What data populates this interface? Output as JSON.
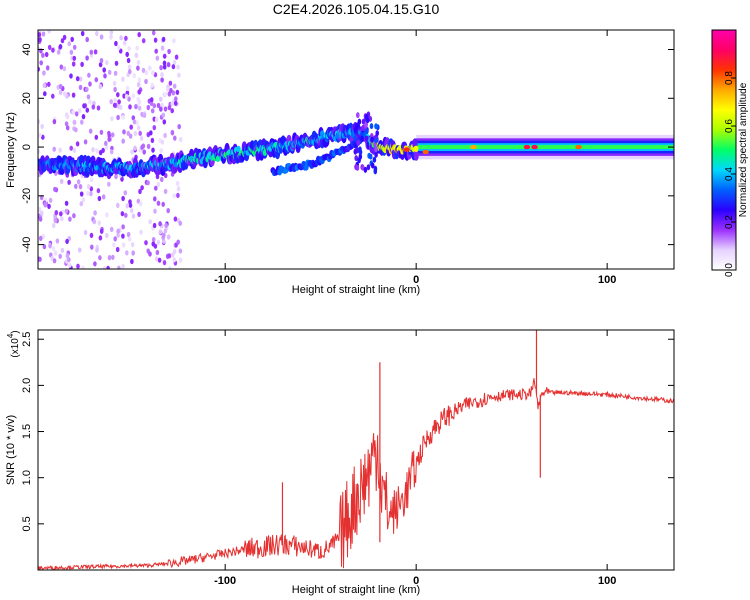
{
  "figure": {
    "title": "C2E4.2026.105.04.15.G10"
  },
  "chart_data": [
    {
      "type": "heatmap",
      "title": "C2E4.2026.105.04.15.G10",
      "xlabel": "Height of straight line (km)",
      "ylabel": "Frequency (Hz)",
      "xlim": [
        -198,
        135
      ],
      "ylim": [
        -50,
        48
      ],
      "xticks": [
        -100,
        0,
        100
      ],
      "xtick_labels": [
        "-100",
        "0",
        "100"
      ],
      "yticks": [
        -40,
        -20,
        0,
        20,
        40
      ],
      "ytick_labels": [
        "-40",
        "-20",
        "0",
        "20",
        "40"
      ],
      "grid": false,
      "colorbar": {
        "label": "Normalized spectral amplitude",
        "range": [
          0.0,
          1.0
        ],
        "ticks": [
          0.0,
          0.2,
          0.4,
          0.6,
          0.8
        ],
        "tick_labels": [
          "0.0",
          "0.2",
          "0.4",
          "0.6",
          "0.8"
        ],
        "colors": [
          "#ffffff",
          "#e6d2ff",
          "#9b30ff",
          "#2b00ff",
          "#0060ff",
          "#00d8ff",
          "#00ff66",
          "#aaff00",
          "#ffff00",
          "#ffaa00",
          "#ff3300",
          "#ff0066",
          "#ff00aa"
        ]
      },
      "main_ridge": [
        {
          "x": -198,
          "y": -7,
          "amp": 0.3
        },
        {
          "x": -170,
          "y": -8,
          "amp": 0.35
        },
        {
          "x": -150,
          "y": -9,
          "amp": 0.35
        },
        {
          "x": -130,
          "y": -7,
          "amp": 0.4
        },
        {
          "x": -110,
          "y": -4,
          "amp": 0.45
        },
        {
          "x": -90,
          "y": -2,
          "amp": 0.45
        },
        {
          "x": -70,
          "y": 0,
          "amp": 0.4
        },
        {
          "x": -50,
          "y": 4,
          "amp": 0.4
        },
        {
          "x": -30,
          "y": 6,
          "amp": 0.35
        },
        {
          "x": -20,
          "y": 0,
          "amp": 0.6
        },
        {
          "x": -10,
          "y": -1,
          "amp": 0.7
        },
        {
          "x": 0,
          "y": -1,
          "amp": 0.65
        },
        {
          "x": 20,
          "y": 0,
          "amp": 0.45
        },
        {
          "x": 50,
          "y": 0,
          "amp": 0.5
        },
        {
          "x": 80,
          "y": 0,
          "amp": 0.45
        },
        {
          "x": 110,
          "y": 0,
          "amp": 0.4
        },
        {
          "x": 135,
          "y": 0,
          "amp": 0.4
        }
      ],
      "branch_ridge": [
        {
          "x": -75,
          "y": -10,
          "amp": 0.3
        },
        {
          "x": -55,
          "y": -7,
          "amp": 0.3
        },
        {
          "x": -40,
          "y": -2,
          "amp": 0.3
        },
        {
          "x": -30,
          "y": 2,
          "amp": 0.25
        }
      ],
      "peaks": [
        {
          "x": -5,
          "y": -1,
          "amp": 0.85
        },
        {
          "x": 5,
          "y": -2,
          "amp": 0.8
        },
        {
          "x": 30,
          "y": 0,
          "amp": 0.75
        },
        {
          "x": 58,
          "y": 0,
          "amp": 0.9
        },
        {
          "x": 62,
          "y": 0,
          "amp": 0.9
        },
        {
          "x": 85,
          "y": 0,
          "amp": 0.8
        }
      ]
    },
    {
      "type": "line",
      "xlabel": "Height of straight line (km)",
      "ylabel": "SNR (10 * v/v)",
      "yscale_label": "(x10",
      "yscale_exp": "4",
      "yscale_close": ")",
      "xlim": [
        -198,
        135
      ],
      "ylim": [
        0,
        2.6
      ],
      "xticks": [
        -100,
        0,
        100
      ],
      "xtick_labels": [
        "-100",
        "0",
        "100"
      ],
      "yticks": [
        0.5,
        1.0,
        1.5,
        2.0,
        2.5
      ],
      "ytick_labels": [
        "0.5",
        "1.0",
        "1.5",
        "2.0",
        "2.5"
      ],
      "grid": false,
      "series": [
        {
          "name": "SNR",
          "color": "#e53030",
          "x": [
            -198,
            -180,
            -160,
            -140,
            -130,
            -120,
            -110,
            -100,
            -90,
            -80,
            -70,
            -60,
            -50,
            -45,
            -40,
            -35,
            -30,
            -25,
            -22,
            -20,
            -18,
            -15,
            -10,
            -5,
            0,
            5,
            10,
            15,
            20,
            25,
            30,
            35,
            40,
            45,
            50,
            55,
            60,
            62,
            64,
            66,
            70,
            80,
            90,
            100,
            110,
            120,
            135
          ],
          "values": [
            0.02,
            0.03,
            0.04,
            0.05,
            0.07,
            0.1,
            0.14,
            0.18,
            0.22,
            0.25,
            0.28,
            0.25,
            0.2,
            0.25,
            0.35,
            0.6,
            0.85,
            1.05,
            1.25,
            1.35,
            0.9,
            0.6,
            0.65,
            0.85,
            1.15,
            1.4,
            1.55,
            1.65,
            1.72,
            1.78,
            1.82,
            1.85,
            1.88,
            1.89,
            1.9,
            1.9,
            1.91,
            2.05,
            1.75,
            1.92,
            1.92,
            1.92,
            1.91,
            1.9,
            1.88,
            1.86,
            1.83
          ]
        }
      ],
      "annotations": [
        {
          "x": -70,
          "value": 0.95,
          "label": "spike"
        },
        {
          "x": -19,
          "value": 2.25,
          "label": "spike"
        },
        {
          "x": 63,
          "value": 2.6,
          "label": "spike"
        },
        {
          "x": 65,
          "value": 1.0,
          "label": "dip"
        }
      ]
    }
  ]
}
